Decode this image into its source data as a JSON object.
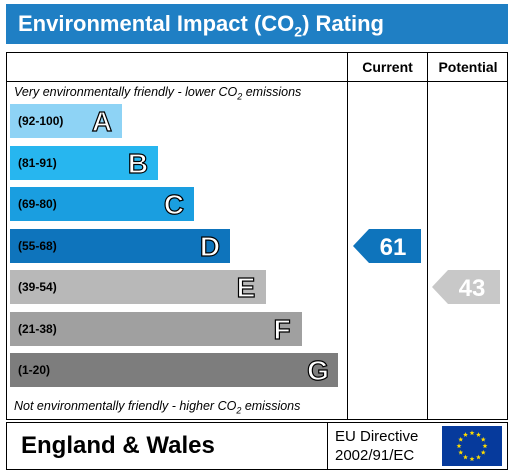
{
  "title": {
    "prefix": "Environmental Impact (CO",
    "sub": "2",
    "suffix": ") Rating"
  },
  "columns": {
    "current": "Current",
    "potential": "Potential"
  },
  "top_note": {
    "prefix": "Very environmentally friendly - lower CO",
    "sub": "2",
    "suffix": " emissions"
  },
  "bottom_note": {
    "prefix": "Not environmentally friendly - higher CO",
    "sub": "2",
    "suffix": " emissions"
  },
  "bands": [
    {
      "range": "(92-100)",
      "letter": "A",
      "color": "#8ed3f5"
    },
    {
      "range": "(81-91)",
      "letter": "B",
      "color": "#27b6ef"
    },
    {
      "range": "(69-80)",
      "letter": "C",
      "color": "#1a9ee0"
    },
    {
      "range": "(55-68)",
      "letter": "D",
      "color": "#0e74bc"
    },
    {
      "range": "(39-54)",
      "letter": "E",
      "color": "#b8b8b8"
    },
    {
      "range": "(21-38)",
      "letter": "F",
      "color": "#a0a0a0"
    },
    {
      "range": "(1-20)",
      "letter": "G",
      "color": "#7d7d7d"
    }
  ],
  "current": {
    "value": "61",
    "band": "D",
    "color": "#0e74bc"
  },
  "potential": {
    "value": "43",
    "band": "E",
    "color": "#c8c8c8"
  },
  "footer": {
    "region": "England & Wales",
    "directive_line1": "EU Directive",
    "directive_line2": "2002/91/EC"
  }
}
